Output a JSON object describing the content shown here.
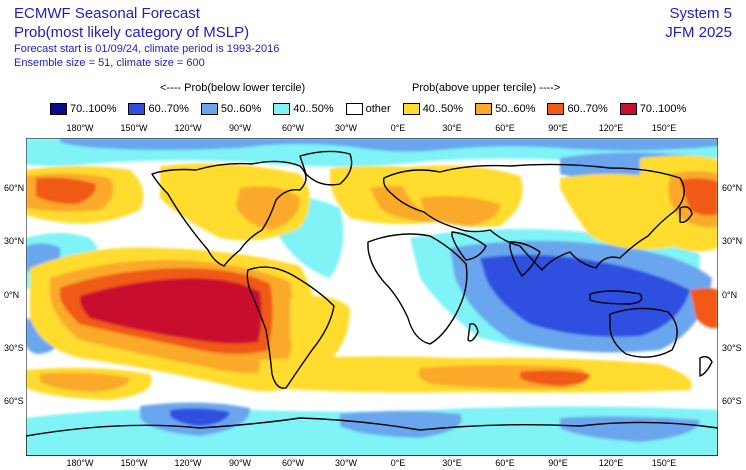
{
  "header": {
    "title": "ECMWF Seasonal Forecast",
    "subtitle": "Prob(most likely category of MSLP)",
    "forecast_info": "Forecast start is 01/09/24, climate period is 1993-2016",
    "ensemble_info": "Ensemble size = 51, climate size = 600",
    "system": "System 5",
    "period": "JFM 2025"
  },
  "legend": {
    "below_caption": "<---- Prob(below lower tercile)",
    "above_caption": "Prob(above upper tercile) ---->",
    "items": [
      {
        "label": "70..100%",
        "color": "#0a0a8c"
      },
      {
        "label": "60..70%",
        "color": "#2f4fe0"
      },
      {
        "label": "50..60%",
        "color": "#6aa6ee"
      },
      {
        "label": "40..50%",
        "color": "#7ff3f6"
      },
      {
        "label": "other",
        "color": "#ffffff"
      },
      {
        "label": "40..50%",
        "color": "#ffdc2e"
      },
      {
        "label": "50..60%",
        "color": "#fba92a"
      },
      {
        "label": "60..70%",
        "color": "#f05a14"
      },
      {
        "label": "70..100%",
        "color": "#c8102e"
      }
    ]
  },
  "map": {
    "lon_labels": [
      "180°W",
      "150°W",
      "120°W",
      "90°W",
      "60°W",
      "30°W",
      "0°E",
      "30°E",
      "60°E",
      "90°E",
      "120°E",
      "150°E"
    ],
    "lat_labels": [
      "60°N",
      "30°N",
      "0°N",
      "30°S",
      "60°S"
    ]
  }
}
